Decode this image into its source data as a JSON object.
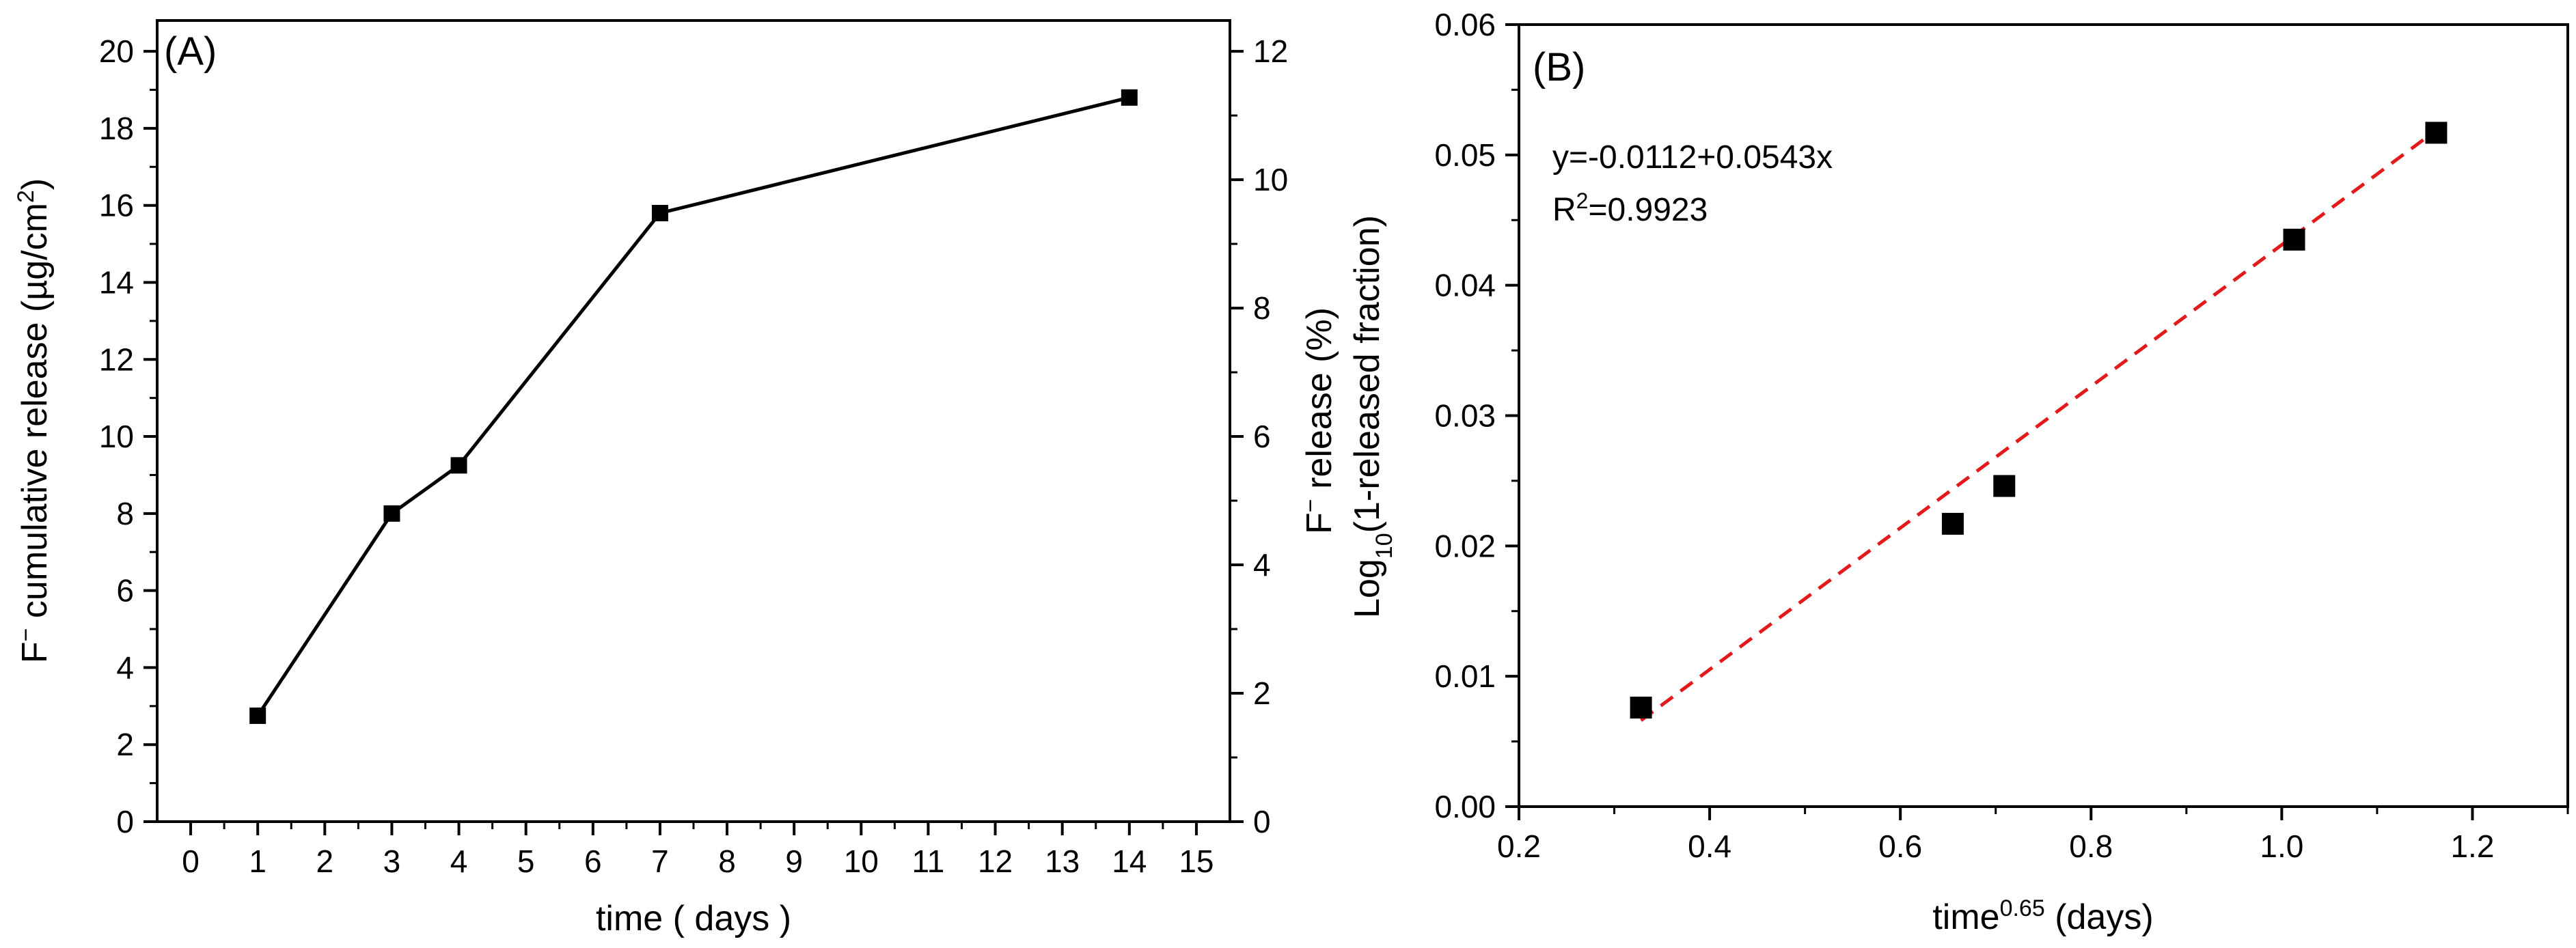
{
  "chart_data": [
    {
      "id": "A",
      "type": "line",
      "panel_label": "(A)",
      "xlabel": "time ( days )",
      "ylabel": {
        "pre": "F",
        "sup": "−",
        "post": " cumulative release (µg/cm",
        "sup2": "2",
        "end": ")"
      },
      "y2label": {
        "pre": "F",
        "sup": "−",
        "post": " release (%)"
      },
      "xlim": [
        -0.5,
        15.5
      ],
      "ylim": [
        0,
        20.8
      ],
      "y2lim": [
        0,
        12.48
      ],
      "xticks": [
        "0",
        "1",
        "2",
        "3",
        "4",
        "5",
        "6",
        "7",
        "8",
        "9",
        "10",
        "11",
        "12",
        "13",
        "14",
        "15"
      ],
      "yticks": [
        "0",
        "2",
        "4",
        "6",
        "8",
        "10",
        "12",
        "14",
        "16",
        "18",
        "20"
      ],
      "y2ticks": [
        "0",
        "2",
        "4",
        "6",
        "8",
        "10",
        "12"
      ],
      "series": [
        {
          "name": "F- cumulative release",
          "x": [
            1,
            3,
            4,
            7,
            14
          ],
          "y": [
            2.75,
            8.0,
            9.25,
            15.8,
            18.8
          ]
        }
      ]
    },
    {
      "id": "B",
      "type": "scatter",
      "panel_label": "(B)",
      "xlabel": {
        "pre": "time",
        "sup": "0.65",
        "post": " (days)"
      },
      "ylabel": {
        "pre": "Log",
        "sub": "10",
        "post": "(1-released fraction)"
      },
      "xlim": [
        0.2,
        1.3
      ],
      "ylim": [
        0.0,
        0.06
      ],
      "xticks": [
        "0.2",
        "0.4",
        "0.6",
        "0.8",
        "1.0",
        "1.2"
      ],
      "yticks": [
        "0.00",
        "0.01",
        "0.02",
        "0.03",
        "0.04",
        "0.05",
        "0.06"
      ],
      "points": {
        "x": [
          0.328,
          0.655,
          0.709,
          1.013,
          1.162
        ],
        "y": [
          0.0076,
          0.0217,
          0.0246,
          0.0435,
          0.0517
        ]
      },
      "fit": {
        "intercept": -0.0112,
        "slope": 0.0543,
        "x_range": [
          0.328,
          1.162
        ],
        "color": "#e31a1c"
      },
      "annotation": {
        "equation": "y=-0.0112+0.0543x",
        "r2_pre": "R",
        "r2_sup": "2",
        "r2_post": "=0.9923"
      }
    }
  ]
}
